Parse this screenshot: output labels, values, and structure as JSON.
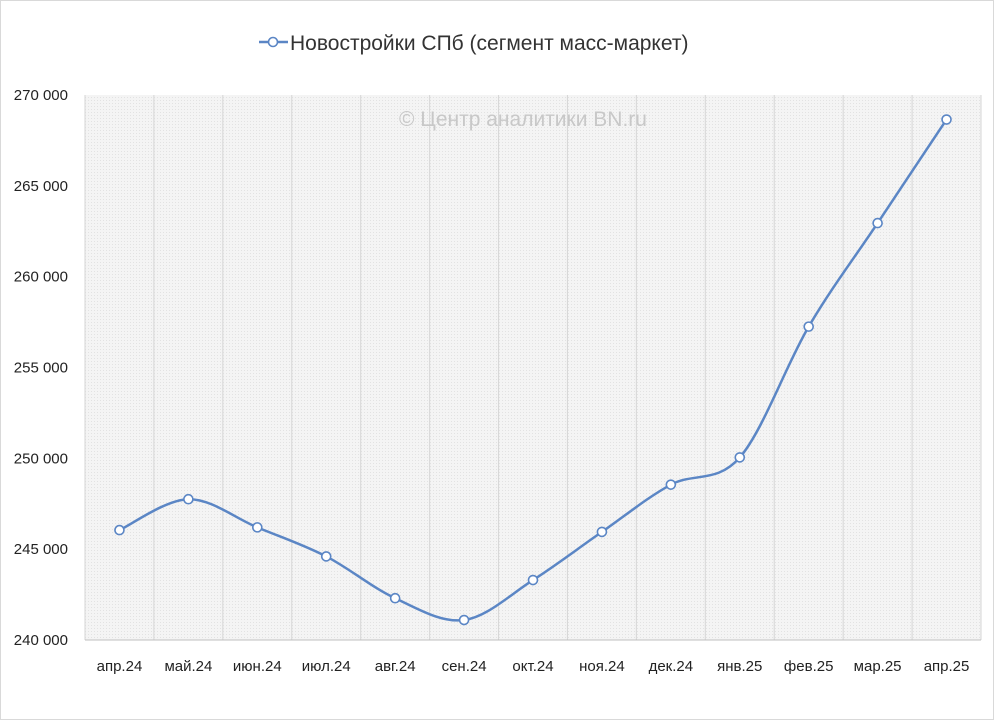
{
  "chart_data": {
    "type": "line",
    "categories": [
      "апр.24",
      "май.24",
      "июн.24",
      "июл.24",
      "авг.24",
      "сен.24",
      "окт.24",
      "ноя.24",
      "дек.24",
      "янв.25",
      "фев.25",
      "мар.25",
      "апр.25"
    ],
    "series": [
      {
        "name": "Новостройки СПб (сегмент масс-маркет)",
        "color": "#5b86c5",
        "values": [
          246050,
          247750,
          246200,
          244600,
          242300,
          241100,
          243300,
          245950,
          248550,
          250050,
          257250,
          262950,
          268650
        ]
      }
    ],
    "ylim": [
      240000,
      270000
    ],
    "y_ticks": [
      240000,
      245000,
      250000,
      255000,
      260000,
      265000,
      270000
    ],
    "y_tick_labels": [
      "240 000",
      "245 000",
      "250 000",
      "255 000",
      "260 000",
      "265 000",
      "270 000"
    ],
    "legend_position": "top",
    "grid": "vertical",
    "smooth": true,
    "watermark": "© Центр аналитики BN.ru"
  }
}
